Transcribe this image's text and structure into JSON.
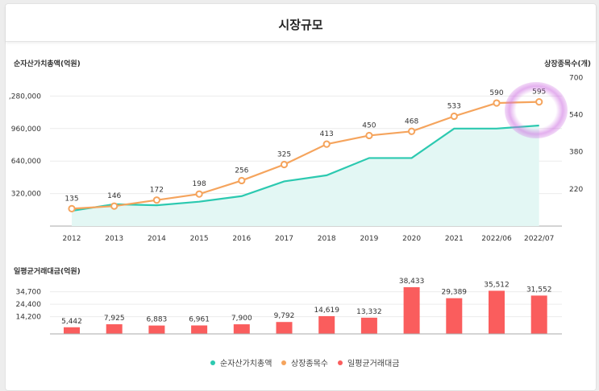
{
  "page": {
    "title": "시장규모"
  },
  "colors": {
    "nav": "#2cc9b0",
    "count": "#f5a45d",
    "volume": "#fa5d5d",
    "area": "#e3f7f4"
  },
  "chart_data": [
    {
      "type": "line",
      "categories": [
        "2012",
        "2013",
        "2014",
        "2015",
        "2016",
        "2017",
        "2018",
        "2019",
        "2020",
        "2021",
        "2022/06",
        "2022/07"
      ],
      "left_axis": {
        "title": "순자산가치총액(억원)",
        "ticks": [
          320000,
          640000,
          960000,
          1280000
        ],
        "tick_labels": [
          "320,000",
          "640,000",
          "960,000",
          ",280,000"
        ],
        "range": [
          0,
          1600000
        ]
      },
      "right_axis": {
        "title": "상장종목수(개)",
        "ticks": [
          220,
          380,
          540,
          700
        ],
        "tick_labels": [
          "220",
          "380",
          "540",
          "700"
        ],
        "range": [
          60,
          760
        ]
      },
      "series": [
        {
          "name": "순자산가치총액",
          "axis": "left",
          "area": true,
          "values": [
            150000,
            215000,
            205000,
            240000,
            295000,
            440000,
            500000,
            670000,
            670000,
            960000,
            960000,
            990000
          ]
        },
        {
          "name": "상장종목수",
          "axis": "right",
          "markers": true,
          "values": [
            135,
            146,
            172,
            198,
            256,
            325,
            413,
            450,
            468,
            533,
            590,
            595
          ],
          "labels": [
            "135",
            "146",
            "172",
            "198",
            "256",
            "325",
            "413",
            "450",
            "468",
            "533",
            "590",
            "595"
          ]
        }
      ]
    },
    {
      "type": "bar",
      "y_axis": {
        "title": "일평균거래대금(억원)",
        "ticks": [
          14200,
          24400,
          34700
        ],
        "tick_labels": [
          "14,200",
          "24,400",
          "34,700"
        ],
        "range": [
          0,
          38433
        ]
      },
      "categories": [
        "2012",
        "2013",
        "2014",
        "2015",
        "2016",
        "2017",
        "2018",
        "2019",
        "2020",
        "2021",
        "2022/06",
        "2022/07"
      ],
      "series": [
        {
          "name": "일평균거래대금",
          "values": [
            5442,
            7925,
            6883,
            6961,
            7900,
            9792,
            14619,
            13332,
            38433,
            29389,
            35512,
            31552
          ],
          "labels": [
            "5,442",
            "7,925",
            "6,883",
            "6,961",
            "7,900",
            "9,792",
            "14,619",
            "13,332",
            "38,433",
            "29,389",
            "35,512",
            "31,552"
          ]
        }
      ]
    }
  ],
  "legend": [
    {
      "label": "순자산가치총액",
      "color": "#2cc9b0"
    },
    {
      "label": "상장종목수",
      "color": "#f5a45d"
    },
    {
      "label": "일평균거래대금",
      "color": "#fa5d5d"
    }
  ]
}
